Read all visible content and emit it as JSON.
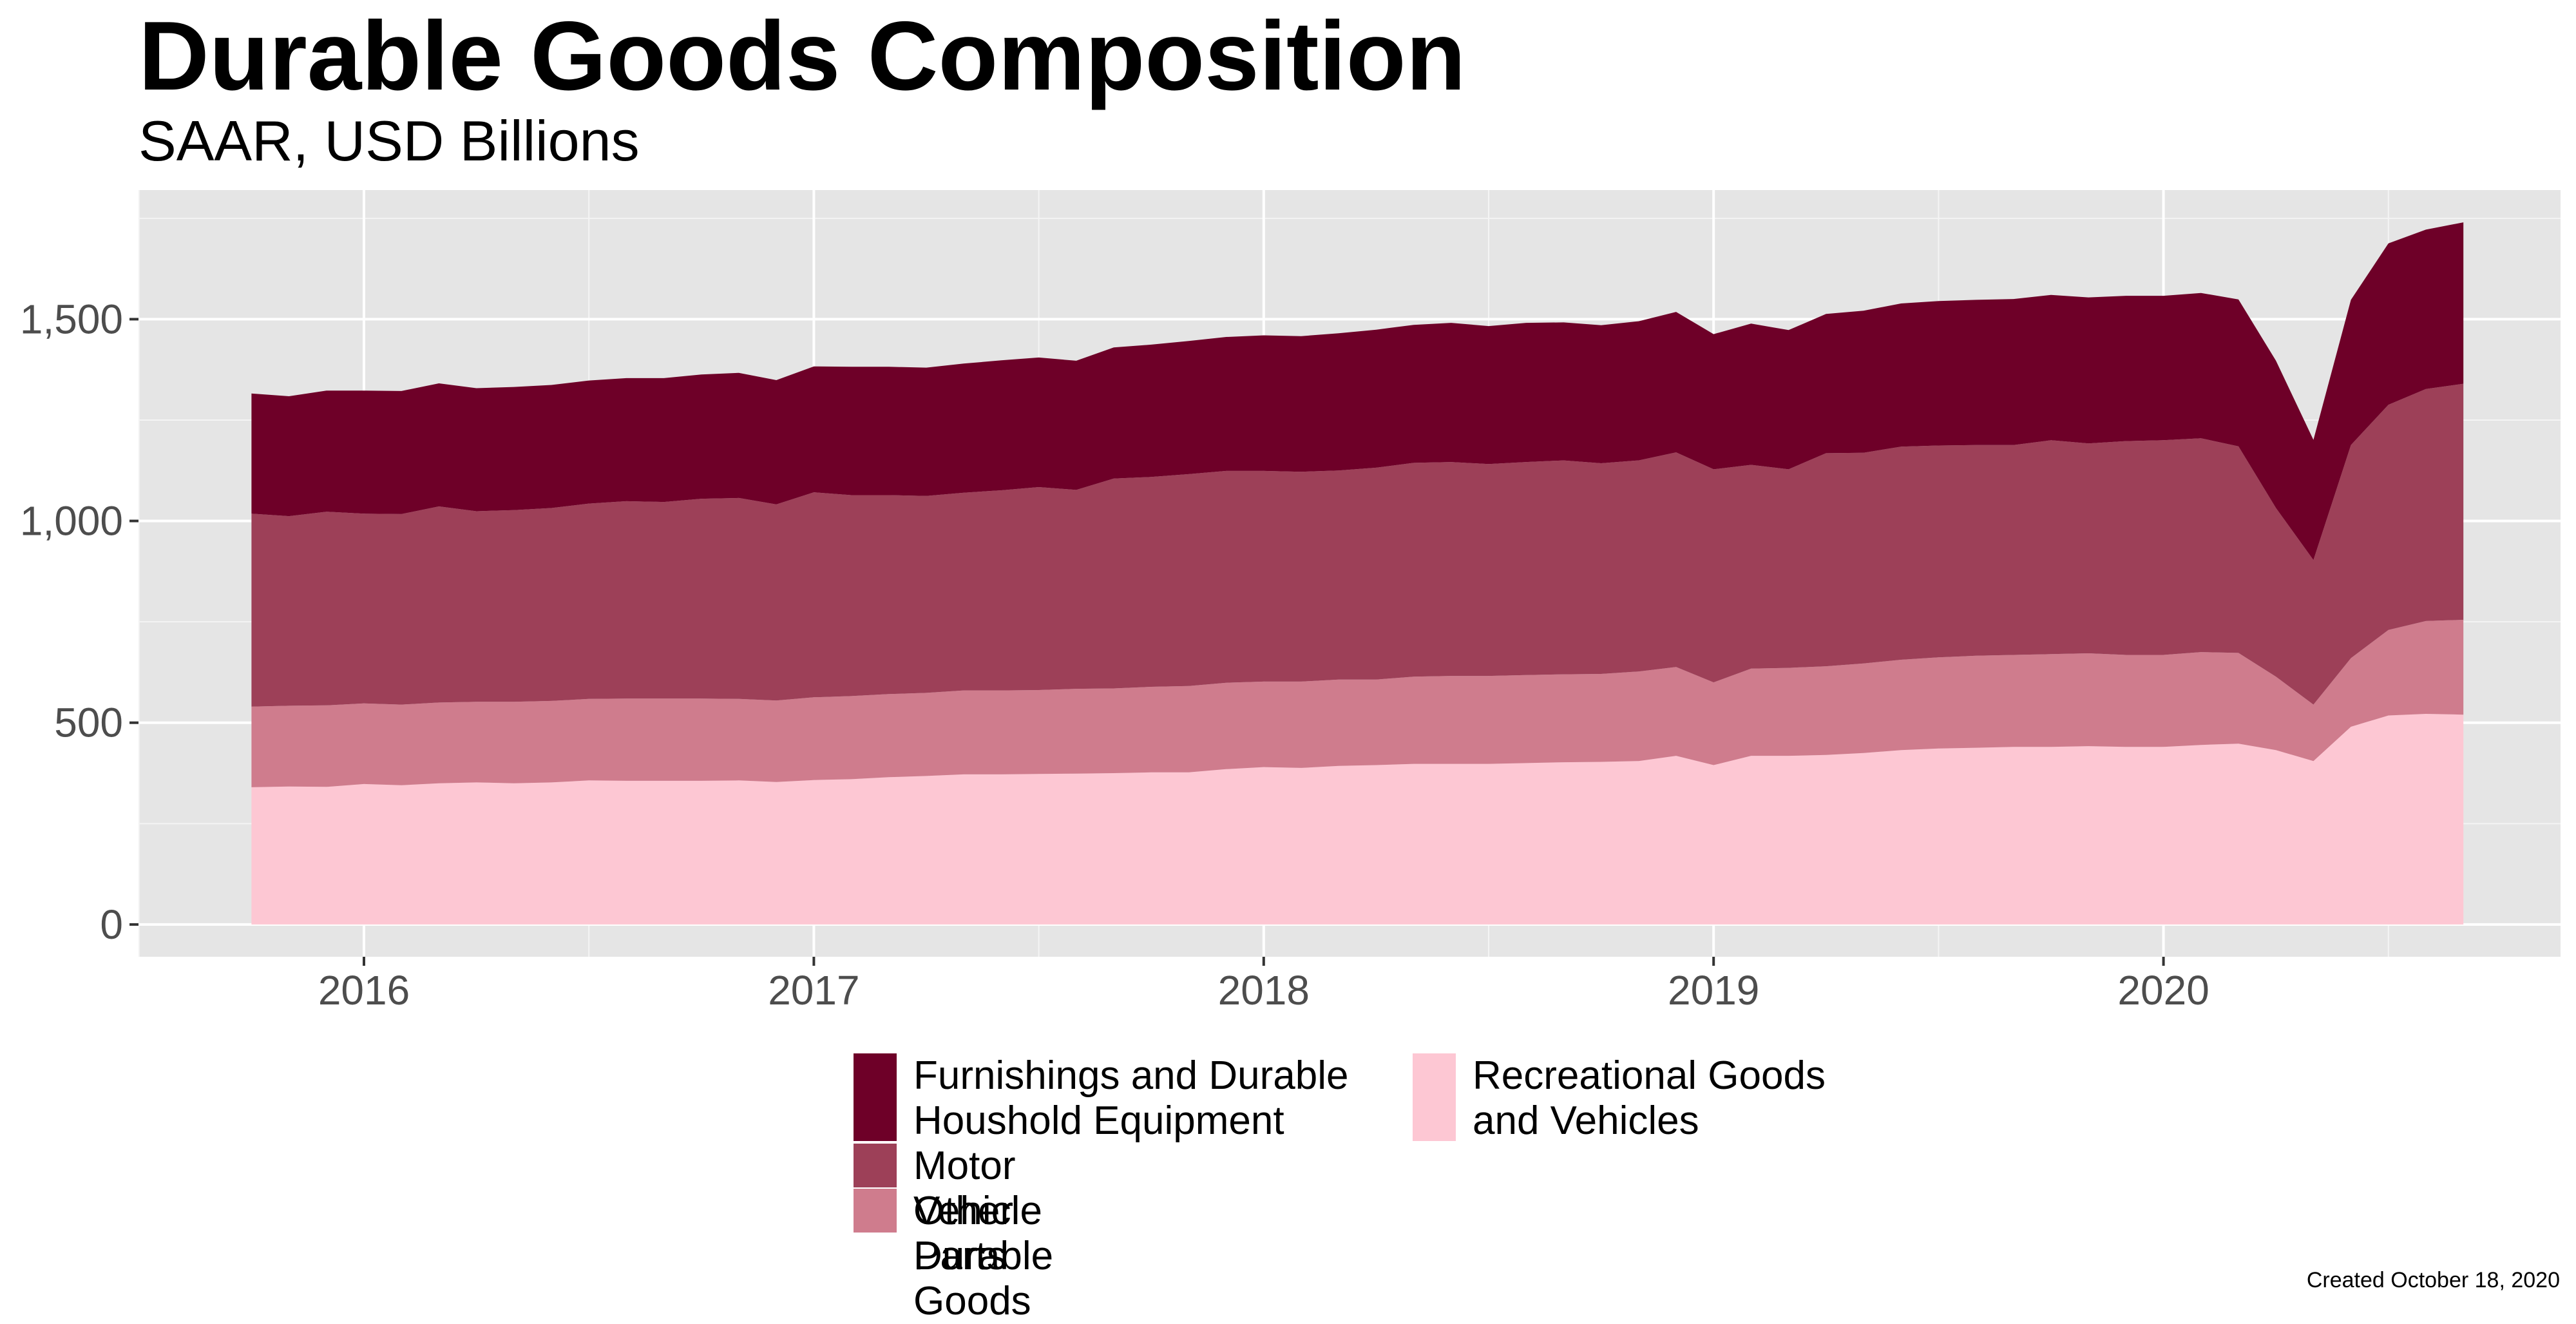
{
  "title": "Durable Goods Composition",
  "subtitle": "SAAR, USD Billions",
  "caption": "Created October 18, 2020",
  "chart_data": {
    "type": "area",
    "stacked": true,
    "x_start": "2015-10",
    "x": [
      "2015-10",
      "2015-11",
      "2015-12",
      "2016-01",
      "2016-02",
      "2016-03",
      "2016-04",
      "2016-05",
      "2016-06",
      "2016-07",
      "2016-08",
      "2016-09",
      "2016-10",
      "2016-11",
      "2016-12",
      "2017-01",
      "2017-02",
      "2017-03",
      "2017-04",
      "2017-05",
      "2017-06",
      "2017-07",
      "2017-08",
      "2017-09",
      "2017-10",
      "2017-11",
      "2017-12",
      "2018-01",
      "2018-02",
      "2018-03",
      "2018-04",
      "2018-05",
      "2018-06",
      "2018-07",
      "2018-08",
      "2018-09",
      "2018-10",
      "2018-11",
      "2018-12",
      "2019-01",
      "2019-02",
      "2019-03",
      "2019-04",
      "2019-05",
      "2019-06",
      "2019-07",
      "2019-08",
      "2019-09",
      "2019-10",
      "2019-11",
      "2019-12",
      "2020-01",
      "2020-02",
      "2020-03",
      "2020-04",
      "2020-05",
      "2020-06",
      "2020-07",
      "2020-08",
      "2020-09"
    ],
    "x_ticks": [
      "2016",
      "2017",
      "2018",
      "2019",
      "2020"
    ],
    "y_ticks": [
      "0",
      "500",
      "1,000",
      "1,500"
    ],
    "y_tick_values": [
      0,
      500,
      1000,
      1500
    ],
    "ylim": [
      -80,
      1820
    ],
    "grid": true,
    "legend_position": "bottom",
    "series": [
      {
        "name": "Recreational Goods and Vehicles",
        "color": "#FDC7D3",
        "values": [
          340,
          342,
          341,
          348,
          345,
          350,
          352,
          350,
          352,
          357,
          356,
          356,
          356,
          357,
          353,
          358,
          360,
          365,
          368,
          372,
          372,
          373,
          374,
          375,
          377,
          377,
          385,
          390,
          388,
          393,
          395,
          398,
          398,
          398,
          400,
          402,
          403,
          405,
          418,
          395,
          418,
          418,
          420,
          425,
          432,
          436,
          438,
          440,
          440,
          442,
          440,
          440,
          445,
          448,
          432,
          405,
          490,
          518,
          522,
          520
        ]
      },
      {
        "name": "Other Durable Goods",
        "color": "#CF7C8D",
        "values": [
          200,
          200,
          202,
          200,
          200,
          200,
          200,
          202,
          202,
          202,
          204,
          204,
          204,
          202,
          202,
          205,
          206,
          206,
          206,
          208,
          208,
          208,
          210,
          210,
          212,
          214,
          214,
          212,
          214,
          214,
          212,
          216,
          218,
          218,
          218,
          218,
          218,
          222,
          220,
          205,
          216,
          218,
          220,
          222,
          224,
          226,
          228,
          228,
          230,
          230,
          228,
          228,
          230,
          225,
          182,
          140,
          170,
          212,
          230,
          235
        ]
      },
      {
        "name": "Motor Vehicle Parts",
        "color": "#9D4058",
        "values": [
          478,
          470,
          480,
          470,
          472,
          486,
          472,
          475,
          478,
          484,
          489,
          487,
          495,
          498,
          486,
          508,
          498,
          493,
          488,
          490,
          496,
          503,
          493,
          520,
          520,
          525,
          525,
          522,
          520,
          518,
          525,
          530,
          530,
          525,
          528,
          530,
          522,
          523,
          532,
          528,
          505,
          492,
          528,
          522,
          528,
          525,
          522,
          520,
          530,
          520,
          530,
          532,
          530,
          512,
          418,
          358,
          528,
          558,
          575,
          585
        ]
      },
      {
        "name": "Furnishings and Durable Houshold Equipment",
        "color": "#6E0028",
        "values": [
          298,
          297,
          300,
          305,
          305,
          305,
          305,
          305,
          305,
          305,
          305,
          307,
          308,
          310,
          308,
          312,
          318,
          318,
          318,
          320,
          322,
          321,
          320,
          325,
          328,
          330,
          332,
          336,
          336,
          340,
          342,
          342,
          345,
          342,
          345,
          342,
          342,
          345,
          348,
          335,
          350,
          345,
          345,
          352,
          355,
          358,
          360,
          362,
          360,
          362,
          360,
          358,
          360,
          364,
          365,
          298,
          360,
          400,
          395,
          400
        ]
      }
    ]
  }
}
